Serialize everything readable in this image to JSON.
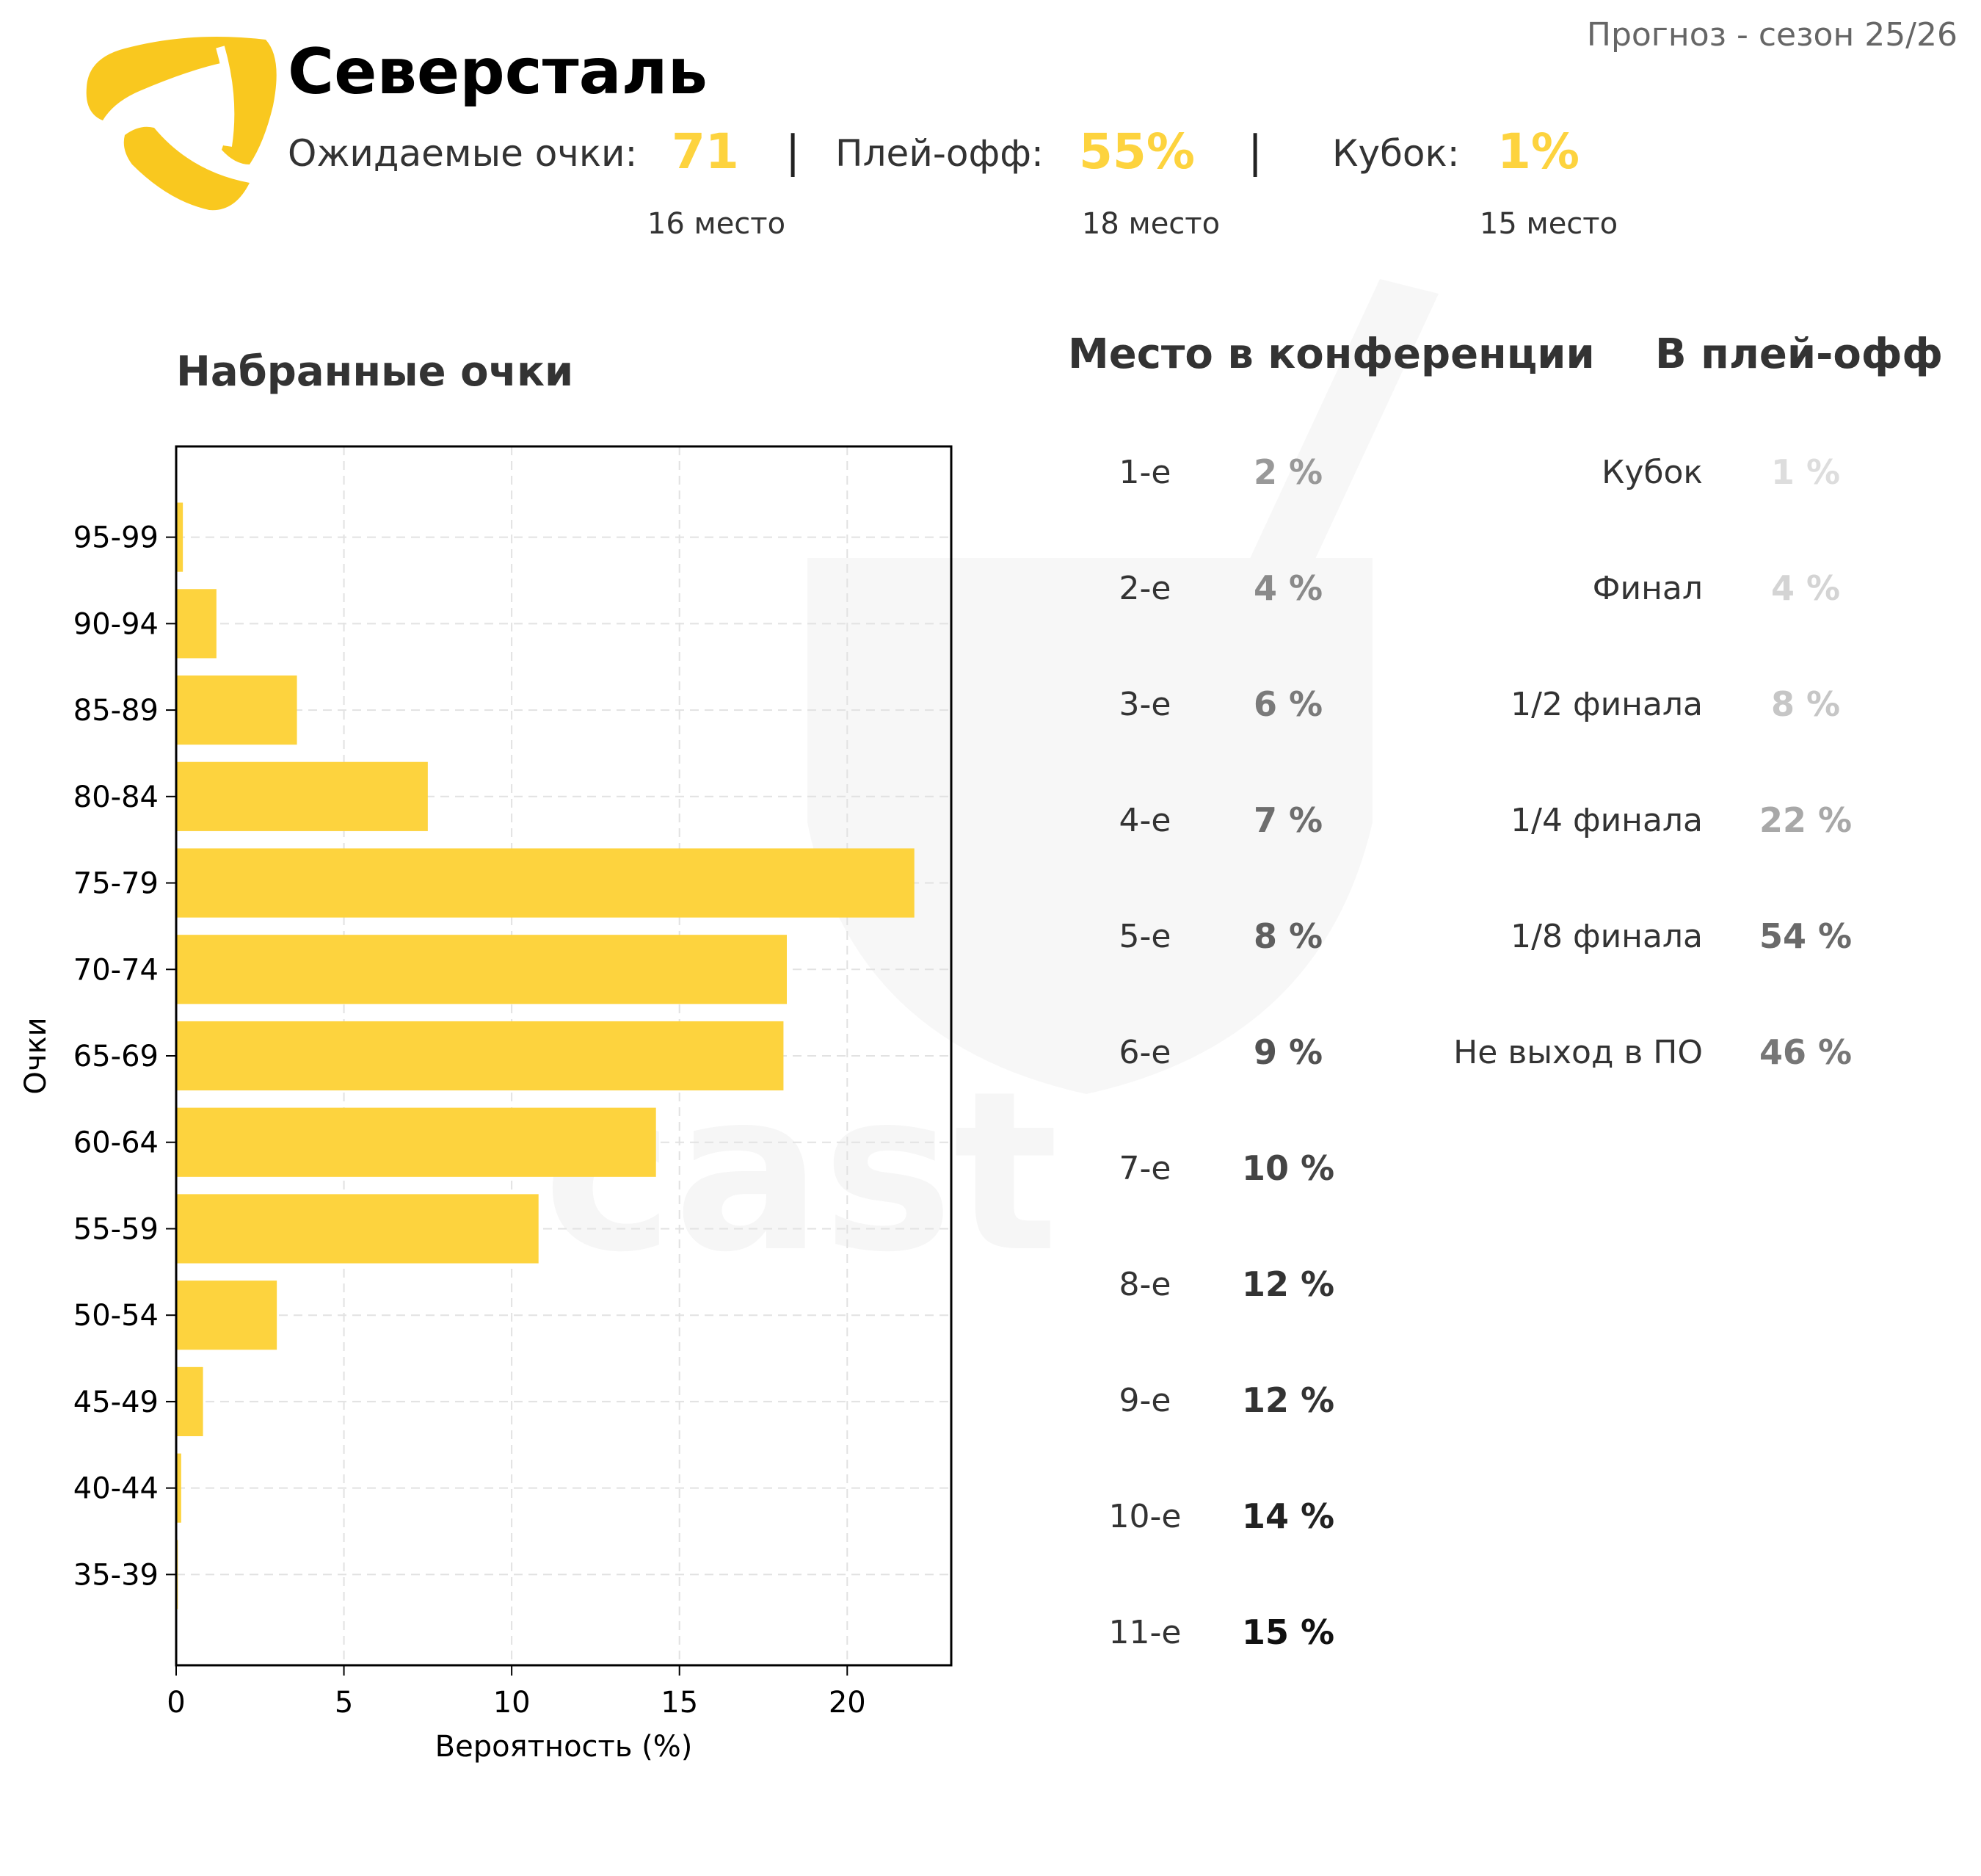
{
  "header": {
    "season": "Прогноз - сезон 25/26",
    "team": "Северсталь",
    "accent_color": "#fdd33e",
    "logo_color": "#f9c81f",
    "stats": [
      {
        "label": "Ожидаемые очки:",
        "value": "71",
        "rank": "16 место"
      },
      {
        "label": "Плей-офф:",
        "value": "55%",
        "rank": "18 место"
      },
      {
        "label": "Кубок:",
        "value": "1%",
        "rank": "15 место"
      }
    ],
    "separator": "|"
  },
  "chart_data": {
    "type": "bar",
    "orientation": "horizontal",
    "title": "Набранные очки",
    "xlabel": "Вероятность (%)",
    "ylabel": "Очки",
    "categories": [
      "95-99",
      "90-94",
      "85-89",
      "80-84",
      "75-79",
      "70-74",
      "65-69",
      "60-64",
      "55-59",
      "50-54",
      "45-49",
      "40-44",
      "35-39"
    ],
    "values": [
      0.2,
      1.2,
      3.6,
      7.5,
      22.0,
      18.2,
      18.1,
      14.3,
      10.8,
      3.0,
      0.8,
      0.15,
      0.05
    ],
    "xlim": [
      0,
      23.1
    ],
    "xticks": [
      "0",
      "5",
      "10",
      "15",
      "20"
    ],
    "xtick_values": [
      0,
      5,
      10,
      15,
      20
    ],
    "grid": true,
    "bar_color": "#fdd33e"
  },
  "conference": {
    "title": "Место в конференции",
    "rows": [
      {
        "place": "1-е",
        "value": "2 %",
        "color": "#999999"
      },
      {
        "place": "2-е",
        "value": "4 %",
        "color": "#8a8a8a"
      },
      {
        "place": "3-е",
        "value": "6 %",
        "color": "#7a7a7a"
      },
      {
        "place": "4-е",
        "value": "7 %",
        "color": "#6e6e6e"
      },
      {
        "place": "5-е",
        "value": "8 %",
        "color": "#5f5f5f"
      },
      {
        "place": "6-е",
        "value": "9 %",
        "color": "#525252"
      },
      {
        "place": "7-е",
        "value": "10 %",
        "color": "#444444"
      },
      {
        "place": "8-е",
        "value": "12 %",
        "color": "#333333"
      },
      {
        "place": "9-е",
        "value": "12 %",
        "color": "#333333"
      },
      {
        "place": "10-е",
        "value": "14 %",
        "color": "#222222"
      },
      {
        "place": "11-е",
        "value": "15 %",
        "color": "#111111"
      }
    ]
  },
  "playoff": {
    "title": "В плей-офф",
    "rows": [
      {
        "stage": "Кубок",
        "value": "1 %",
        "color": "#dddddd"
      },
      {
        "stage": "Финал",
        "value": "4 %",
        "color": "#d4d4d4"
      },
      {
        "stage": "1/2 финала",
        "value": "8 %",
        "color": "#c6c6c6"
      },
      {
        "stage": "1/4 финала",
        "value": "22 %",
        "color": "#a8a8a8"
      },
      {
        "stage": "1/8 финала",
        "value": "54 %",
        "color": "#6a6a6a"
      },
      {
        "stage": "Не выход в ПО",
        "value": "46 %",
        "color": "#777777"
      }
    ]
  }
}
